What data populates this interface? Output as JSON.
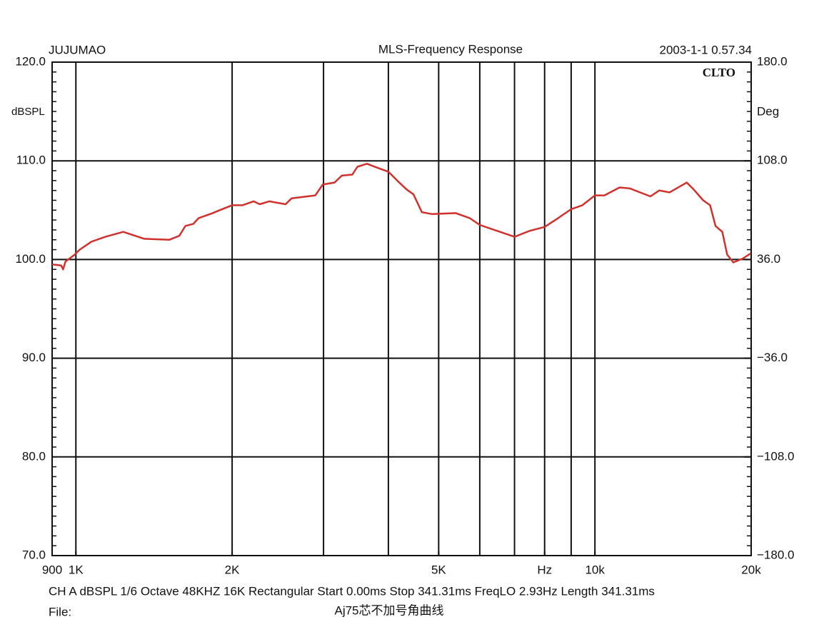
{
  "chart_data": {
    "type": "line",
    "title": "MLS-Frequency Response",
    "left_header": "JUJUMAO",
    "timestamp": "2003-1-1 0.57.34",
    "brand": "CLTO",
    "y_label": "dBSPL",
    "y2_label": "Deg",
    "footer": "CH A dBSPL 1/6 Octave 48KHZ 16K Rectangular Start 0.00ms Stop 341.31ms FreqLO 2.93Hz Length 341.31ms",
    "file_label": "File:",
    "file_name": "Aj75芯不加号角曲线",
    "xscale": "log",
    "xlim": [
      900,
      20000
    ],
    "xticks": [
      {
        "value": 900,
        "label": "900"
      },
      {
        "value": 1000,
        "label": "1K"
      },
      {
        "value": 2000,
        "label": "2K"
      },
      {
        "value": 5000,
        "label": "5K"
      },
      {
        "value": 8000,
        "label": "Hz"
      },
      {
        "value": 10000,
        "label": "10k"
      },
      {
        "value": 20000,
        "label": "20k"
      }
    ],
    "xgrid": [
      1000,
      2000,
      3000,
      4000,
      5000,
      6000,
      7000,
      8000,
      9000,
      10000
    ],
    "ylim": [
      70,
      120
    ],
    "yticks": [
      {
        "value": 70,
        "label": "70.0"
      },
      {
        "value": 80,
        "label": "80.0"
      },
      {
        "value": 90,
        "label": "90.0"
      },
      {
        "value": 100,
        "label": "100.0"
      },
      {
        "value": 110,
        "label": "110.0"
      },
      {
        "value": 120,
        "label": "120.0"
      }
    ],
    "y2lim": [
      -180,
      180
    ],
    "y2ticks": [
      {
        "value": -180,
        "label": "−180.0"
      },
      {
        "value": -108,
        "label": "−108.0"
      },
      {
        "value": -36,
        "label": "−36.0"
      },
      {
        "value": 36,
        "label": "36.0"
      },
      {
        "value": 108,
        "label": "108.0"
      },
      {
        "value": 180,
        "label": "180.0"
      }
    ],
    "grid": true,
    "color": "#d0312d",
    "x": [
      900,
      937,
      945,
      955,
      995,
      1017,
      1071,
      1140,
      1234,
      1355,
      1513,
      1582,
      1626,
      1683,
      1724,
      1835,
      1892,
      2000,
      2094,
      2200,
      2260,
      2359,
      2536,
      2604,
      2893,
      2990,
      3150,
      3254,
      3409,
      3487,
      3637,
      3811,
      4000,
      4178,
      4338,
      4472,
      4641,
      4859,
      5392,
      5737,
      6000,
      6398,
      7000,
      7483,
      8000,
      8495,
      9000,
      9458,
      10000,
      10432,
      11157,
      11680,
      12790,
      13306,
      13927,
      15030,
      15500,
      16165,
      16670,
      17075,
      17600,
      17980,
      18480,
      19280,
      19940
    ],
    "values": [
      99.5,
      99.4,
      99.0,
      99.8,
      100.5,
      101.0,
      101.8,
      102.3,
      102.8,
      102.1,
      102.0,
      102.4,
      103.4,
      103.6,
      104.2,
      104.7,
      105.0,
      105.5,
      105.5,
      105.9,
      105.6,
      105.9,
      105.6,
      106.2,
      106.5,
      107.6,
      107.8,
      108.5,
      108.6,
      109.4,
      109.7,
      109.3,
      108.9,
      107.9,
      107.1,
      106.6,
      104.8,
      104.6,
      104.7,
      104.2,
      103.5,
      103.0,
      102.3,
      102.9,
      103.3,
      104.2,
      105.1,
      105.5,
      106.5,
      106.5,
      107.3,
      107.2,
      106.4,
      107.0,
      106.8,
      107.8,
      107.1,
      106.0,
      105.5,
      103.4,
      102.8,
      100.5,
      99.7,
      100.1,
      100.6
    ]
  }
}
